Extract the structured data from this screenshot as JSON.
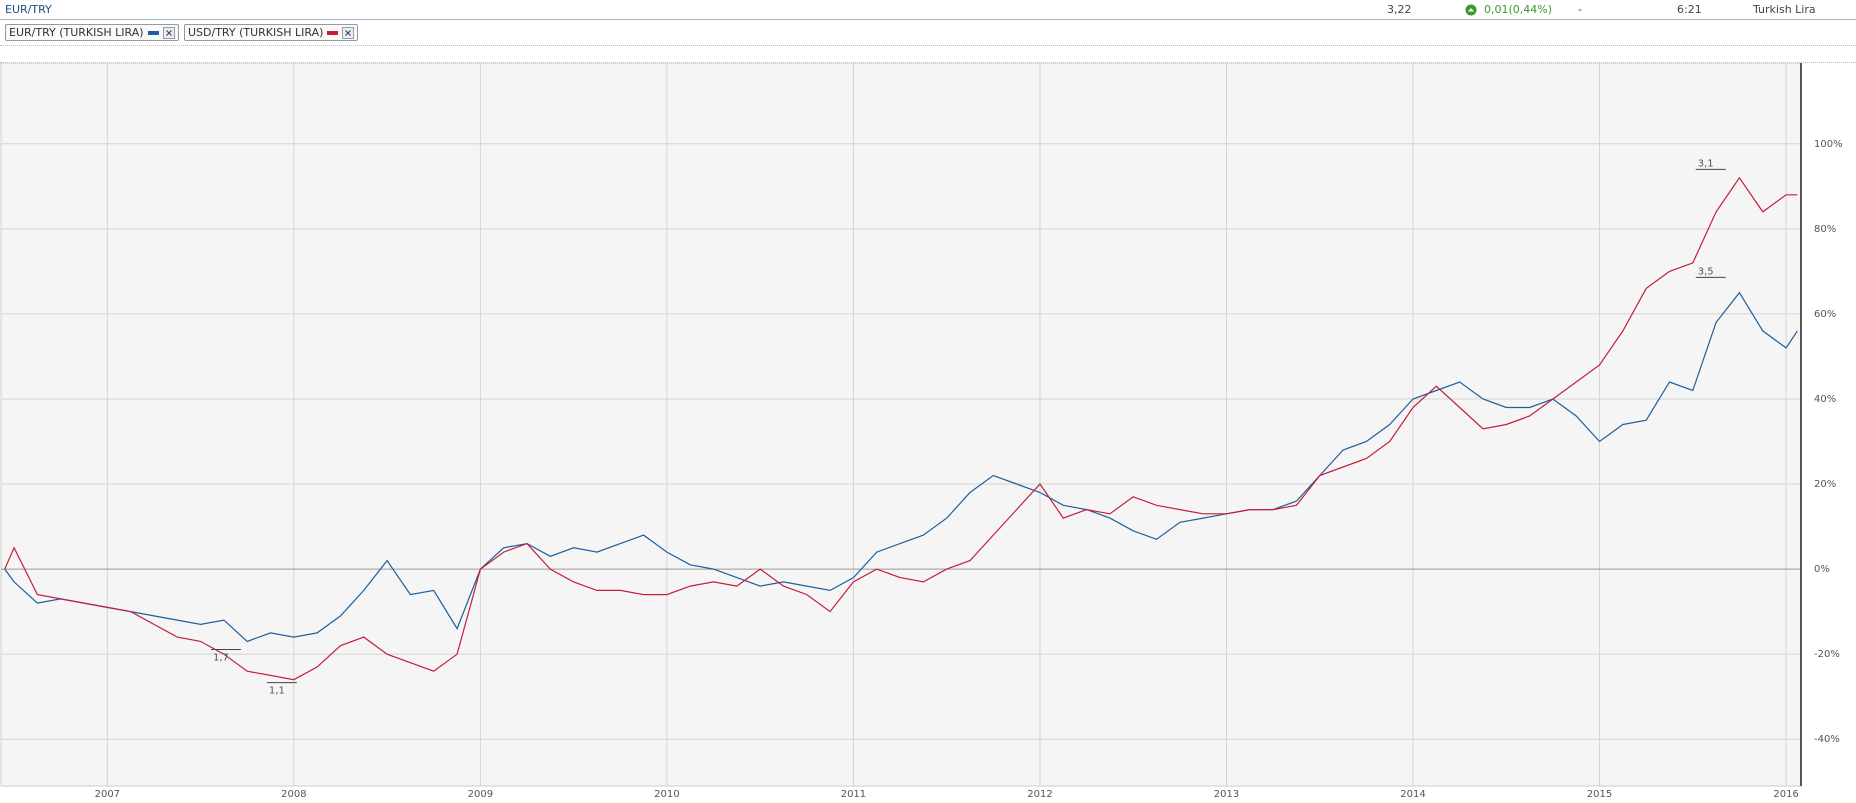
{
  "header": {
    "symbol": "EUR/TRY",
    "price": "3,22",
    "change": "0,01(0,44%)",
    "dash": "-",
    "time": "6:21",
    "currency": "Turkish Lira"
  },
  "chart_data": {
    "type": "line",
    "x": [
      2006.45,
      2006.5,
      2006.625,
      2006.75,
      2006.875,
      2007,
      2007.125,
      2007.25,
      2007.375,
      2007.5,
      2007.625,
      2007.75,
      2007.875,
      2008,
      2008.125,
      2008.25,
      2008.375,
      2008.5,
      2008.625,
      2008.75,
      2008.875,
      2009,
      2009.125,
      2009.25,
      2009.375,
      2009.5,
      2009.625,
      2009.75,
      2009.875,
      2010,
      2010.125,
      2010.25,
      2010.375,
      2010.5,
      2010.625,
      2010.75,
      2010.875,
      2011,
      2011.125,
      2011.25,
      2011.375,
      2011.5,
      2011.625,
      2011.75,
      2011.875,
      2012,
      2012.125,
      2012.25,
      2012.375,
      2012.5,
      2012.625,
      2012.75,
      2012.875,
      2013,
      2013.125,
      2013.25,
      2013.375,
      2013.5,
      2013.625,
      2013.75,
      2013.875,
      2014,
      2014.125,
      2014.25,
      2014.375,
      2014.5,
      2014.625,
      2014.75,
      2014.875,
      2015,
      2015.125,
      2015.25,
      2015.375,
      2015.5,
      2015.625,
      2015.75,
      2015.875,
      2016,
      2016.06
    ],
    "series": [
      {
        "name": "EUR/TRY (TURKISH LIRA)",
        "color": "#1f5f9b",
        "values": [
          0,
          -3,
          -8,
          -7,
          -8,
          -9,
          -10,
          -11,
          -12,
          -13,
          -12,
          -17,
          -15,
          -16,
          -15,
          -11,
          -5,
          2,
          -6,
          -5,
          -14,
          0,
          5,
          6,
          3,
          5,
          4,
          6,
          8,
          4,
          1,
          0,
          -2,
          -4,
          -3,
          -4,
          -5,
          -2,
          4,
          6,
          8,
          12,
          18,
          22,
          20,
          18,
          15,
          14,
          12,
          9,
          7,
          11,
          12,
          13,
          14,
          14,
          16,
          22,
          28,
          30,
          34,
          40,
          42,
          44,
          40,
          38,
          38,
          40,
          36,
          30,
          34,
          35,
          44,
          42,
          58,
          65,
          56,
          52,
          56
        ]
      },
      {
        "name": "USD/TRY (TURKISH LIRA)",
        "color": "#c41e3a",
        "values": [
          0,
          5,
          -6,
          -7,
          -8,
          -9,
          -10,
          -13,
          -16,
          -17,
          -20,
          -24,
          -25,
          -26,
          -23,
          -18,
          -16,
          -20,
          -22,
          -24,
          -20,
          0,
          4,
          6,
          0,
          -3,
          -5,
          -5,
          -6,
          -6,
          -4,
          -3,
          -4,
          0,
          -4,
          -6,
          -10,
          -3,
          0,
          -2,
          -3,
          0,
          2,
          8,
          14,
          20,
          12,
          14,
          13,
          17,
          15,
          14,
          13,
          13,
          14,
          14,
          15,
          22,
          24,
          26,
          30,
          38,
          43,
          38,
          33,
          34,
          36,
          40,
          44,
          48,
          56,
          66,
          70,
          72,
          84,
          92,
          84,
          88,
          88
        ]
      }
    ],
    "annotations": [
      {
        "text": "1,7",
        "x": 2007.62,
        "y": -18.9
      },
      {
        "text": "1,1",
        "x": 2007.92,
        "y": -26.7
      },
      {
        "text": "3,1",
        "x": 2015.58,
        "y": 94
      },
      {
        "text": "3,5",
        "x": 2015.58,
        "y": 68.6
      }
    ],
    "xlim": [
      2006.43,
      2016.08
    ],
    "xticks": [
      2007,
      2008,
      2009,
      2010,
      2011,
      2012,
      2013,
      2014,
      2015,
      2016
    ],
    "ylim": [
      -51,
      119
    ],
    "yticks": [
      {
        "value": -40,
        "label": "-40%"
      },
      {
        "value": -20,
        "label": "-20%"
      },
      {
        "value": 0,
        "label": "0%"
      },
      {
        "value": 20,
        "label": "20%"
      },
      {
        "value": 40,
        "label": "40%"
      },
      {
        "value": 60,
        "label": "60%"
      },
      {
        "value": 80,
        "label": "80%"
      },
      {
        "value": 100,
        "label": "100%"
      }
    ],
    "grid": true
  }
}
